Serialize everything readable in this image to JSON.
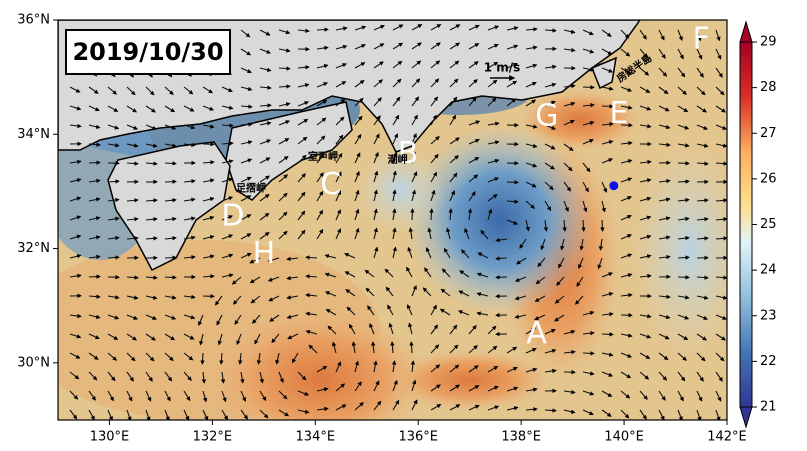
{
  "map": {
    "title": "2019/10/30",
    "xlim": [
      129,
      142
    ],
    "ylim": [
      29,
      36
    ],
    "xticks": [
      {
        "value": 130,
        "label": "130°E"
      },
      {
        "value": 132,
        "label": "132°E"
      },
      {
        "value": 134,
        "label": "134°E"
      },
      {
        "value": 136,
        "label": "136°E"
      },
      {
        "value": 138,
        "label": "138°E"
      },
      {
        "value": 140,
        "label": "140°E"
      },
      {
        "value": 142,
        "label": "142°E"
      }
    ],
    "yticks": [
      {
        "value": 30,
        "label": "30°N"
      },
      {
        "value": 32,
        "label": "32°N"
      },
      {
        "value": 34,
        "label": "34°N"
      },
      {
        "value": 36,
        "label": "36°N"
      }
    ],
    "colorbar": {
      "clim": [
        21,
        29
      ],
      "ticks": [
        21,
        22,
        23,
        24,
        25,
        26,
        27,
        28,
        29
      ]
    },
    "scale_label": "1 m/s",
    "annotations": [
      {
        "text": "A",
        "lon": 138.3,
        "lat": 30.5
      },
      {
        "text": "B",
        "lon": 135.8,
        "lat": 33.65
      },
      {
        "text": "C",
        "lon": 134.3,
        "lat": 33.1
      },
      {
        "text": "D",
        "lon": 132.4,
        "lat": 32.55
      },
      {
        "text": "E",
        "lon": 139.9,
        "lat": 34.35
      },
      {
        "text": "F",
        "lon": 141.5,
        "lat": 35.65
      },
      {
        "text": "G",
        "lon": 138.5,
        "lat": 34.3
      },
      {
        "text": "H",
        "lon": 133.0,
        "lat": 31.9
      }
    ],
    "place_labels": [
      {
        "text": "室戸岬",
        "lon": 134.15,
        "lat": 33.6
      },
      {
        "text": "足摺岬",
        "lon": 132.75,
        "lat": 33.05
      },
      {
        "text": "潮岬",
        "lon": 135.6,
        "lat": 33.55
      },
      {
        "text": "房総半島",
        "lon": 140.2,
        "lat": 35.15
      }
    ],
    "station": {
      "lon": 139.8,
      "lat": 33.1
    }
  }
}
